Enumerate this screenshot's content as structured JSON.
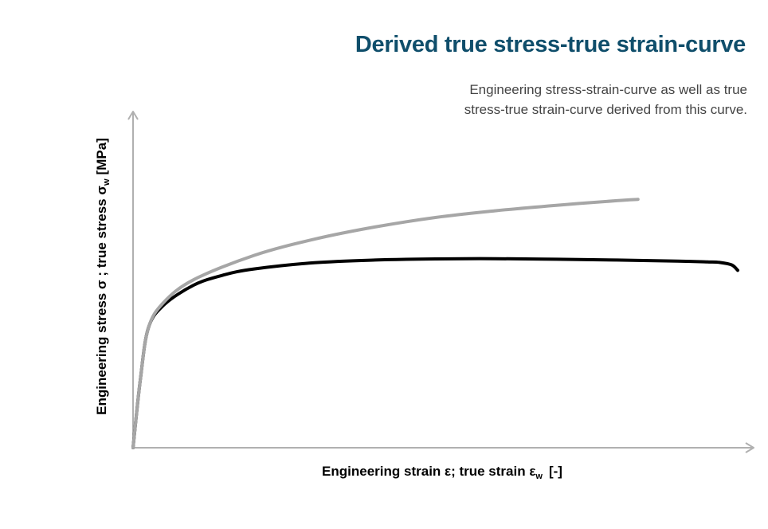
{
  "title": "Derived true stress-true strain-curve",
  "subtitle": {
    "line1": "Engineering stress-strain-curve as well as true",
    "line2": "stress-true strain-curve derived from this curve."
  },
  "chart_data": {
    "type": "line",
    "axes": {
      "x": {
        "label_main": "Engineering strain ε; true strain ε",
        "label_sub": "w",
        "label_unit": "[-]",
        "ticks": "none"
      },
      "y": {
        "label_main": "Engineering stress σ ; true stress σ",
        "label_sub": "w",
        "label_unit": "[MPa]",
        "ticks": "none"
      },
      "grid": false,
      "xlim": [
        0,
        1
      ],
      "ylim": [
        0,
        1
      ]
    },
    "legend": "none",
    "colors": {
      "engineering": "#000000",
      "true": "#a6a6a6",
      "axis": "#b0b0b0"
    },
    "series": [
      {
        "key": "engineering",
        "x": [
          0,
          0.012,
          0.025,
          0.05,
          0.1,
          0.15,
          0.2,
          0.3,
          0.4,
          0.5,
          0.6,
          0.7,
          0.8,
          0.9,
          0.95,
          0.97,
          0.99,
          1.0
        ],
        "y": [
          0,
          0.25,
          0.44,
          0.525,
          0.6,
          0.638,
          0.66,
          0.683,
          0.693,
          0.697,
          0.698,
          0.696,
          0.693,
          0.689,
          0.686,
          0.684,
          0.675,
          0.655
        ]
      },
      {
        "key": "true",
        "x": [
          0,
          0.012,
          0.025,
          0.05,
          0.1,
          0.2,
          0.3,
          0.4,
          0.5,
          0.6,
          0.7,
          0.8,
          0.835
        ],
        "y": [
          0,
          0.25,
          0.44,
          0.535,
          0.62,
          0.71,
          0.77,
          0.815,
          0.85,
          0.875,
          0.895,
          0.912,
          0.917
        ]
      }
    ]
  }
}
